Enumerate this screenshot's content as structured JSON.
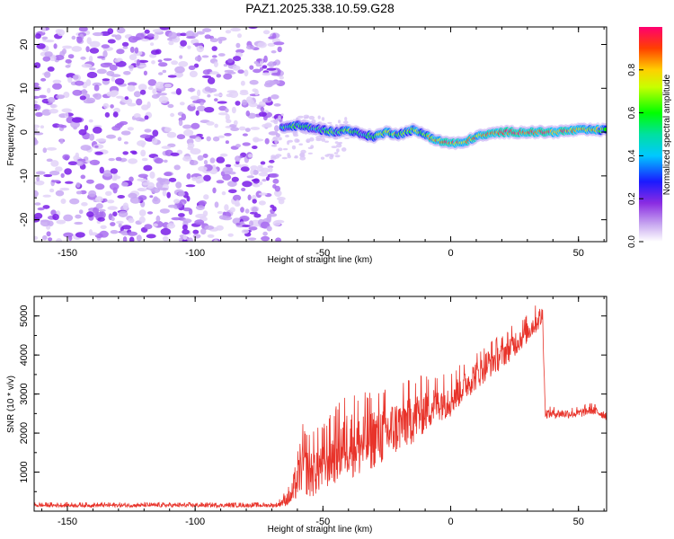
{
  "title": "PAZ1.2025.338.10.59.G28",
  "colors": {
    "snr_line": "#e8332a",
    "dots": "#8a3cf0",
    "frame": "#000000"
  },
  "chart_data": [
    {
      "type": "heatmap",
      "title": "PAZ1.2025.338.10.59.G28",
      "xlabel": "Height of straight line (km)",
      "ylabel": "Frequency (Hz)",
      "xlim": [
        -163,
        61
      ],
      "ylim": [
        -25,
        24
      ],
      "xticks": [
        "-150",
        "-100",
        "-50",
        "0",
        "50"
      ],
      "xtick_values": [
        -150,
        -100,
        -50,
        0,
        50
      ],
      "yticks": [
        "20",
        "10",
        "0",
        "-10",
        "-20"
      ],
      "ytick_values": [
        20,
        10,
        0,
        -10,
        -20
      ],
      "noise_region_x": [
        -163,
        -66
      ],
      "signal_ridge": {
        "x": [
          -66,
          -60,
          -55,
          -50,
          -45,
          -40,
          -35,
          -30,
          -25,
          -20,
          -15,
          -10,
          -5,
          0,
          5,
          10,
          20,
          30,
          40,
          50,
          61
        ],
        "freq": [
          1.0,
          1.5,
          1.0,
          0.5,
          0.0,
          0.5,
          -0.5,
          -1.0,
          0.0,
          -0.5,
          0.5,
          -0.5,
          -2.0,
          -2.5,
          -2.5,
          -1.0,
          0.0,
          0.0,
          0.0,
          0.5,
          0.5
        ],
        "amp": [
          0.5,
          0.6,
          0.55,
          0.5,
          0.6,
          0.65,
          0.55,
          0.6,
          0.75,
          0.6,
          0.65,
          0.7,
          0.85,
          0.9,
          0.85,
          0.8,
          0.9,
          0.95,
          0.9,
          0.85,
          0.7
        ]
      },
      "colorbar": {
        "label": "Normalized spectral amplitude",
        "range": [
          0.0,
          1.0
        ],
        "ticks": [
          "0.0",
          "0.2",
          "0.4",
          "0.6",
          "0.8"
        ],
        "tick_values": [
          0.0,
          0.2,
          0.4,
          0.6,
          0.8
        ]
      }
    },
    {
      "type": "line",
      "xlabel": "Height of straight line (km)",
      "ylabel": "SNR (10 * v/v)",
      "xlim": [
        -163,
        61
      ],
      "ylim": [
        0,
        5500
      ],
      "xticks": [
        "-150",
        "-100",
        "-50",
        "0",
        "50"
      ],
      "xtick_values": [
        -150,
        -100,
        -50,
        0,
        50
      ],
      "yticks": [
        "1000",
        "2000",
        "3000",
        "4000",
        "5000"
      ],
      "ytick_values": [
        1000,
        2000,
        3000,
        4000,
        5000
      ],
      "series": [
        {
          "name": "SNR",
          "x": [
            -163,
            -150,
            -120,
            -90,
            -68,
            -62,
            -58,
            -55,
            -50,
            -45,
            -40,
            -35,
            -30,
            -25,
            -20,
            -15,
            -10,
            -5,
            0,
            5,
            10,
            15,
            20,
            25,
            30,
            34,
            36,
            37,
            40,
            45,
            50,
            55,
            61
          ],
          "y": [
            150,
            150,
            150,
            150,
            150,
            400,
            1200,
            1000,
            1200,
            1500,
            1800,
            1700,
            1900,
            2000,
            2200,
            2400,
            2600,
            2800,
            2900,
            3200,
            3500,
            3800,
            4000,
            4300,
            4600,
            4900,
            5000,
            2500,
            2500,
            2500,
            2500,
            2600,
            2450
          ],
          "noise_amplitude": [
            50,
            50,
            50,
            50,
            50,
            250,
            700,
            700,
            700,
            800,
            900,
            900,
            800,
            800,
            700,
            700,
            600,
            500,
            500,
            400,
            400,
            400,
            350,
            350,
            300,
            300,
            300,
            120,
            120,
            120,
            120,
            120,
            120
          ]
        }
      ]
    }
  ]
}
